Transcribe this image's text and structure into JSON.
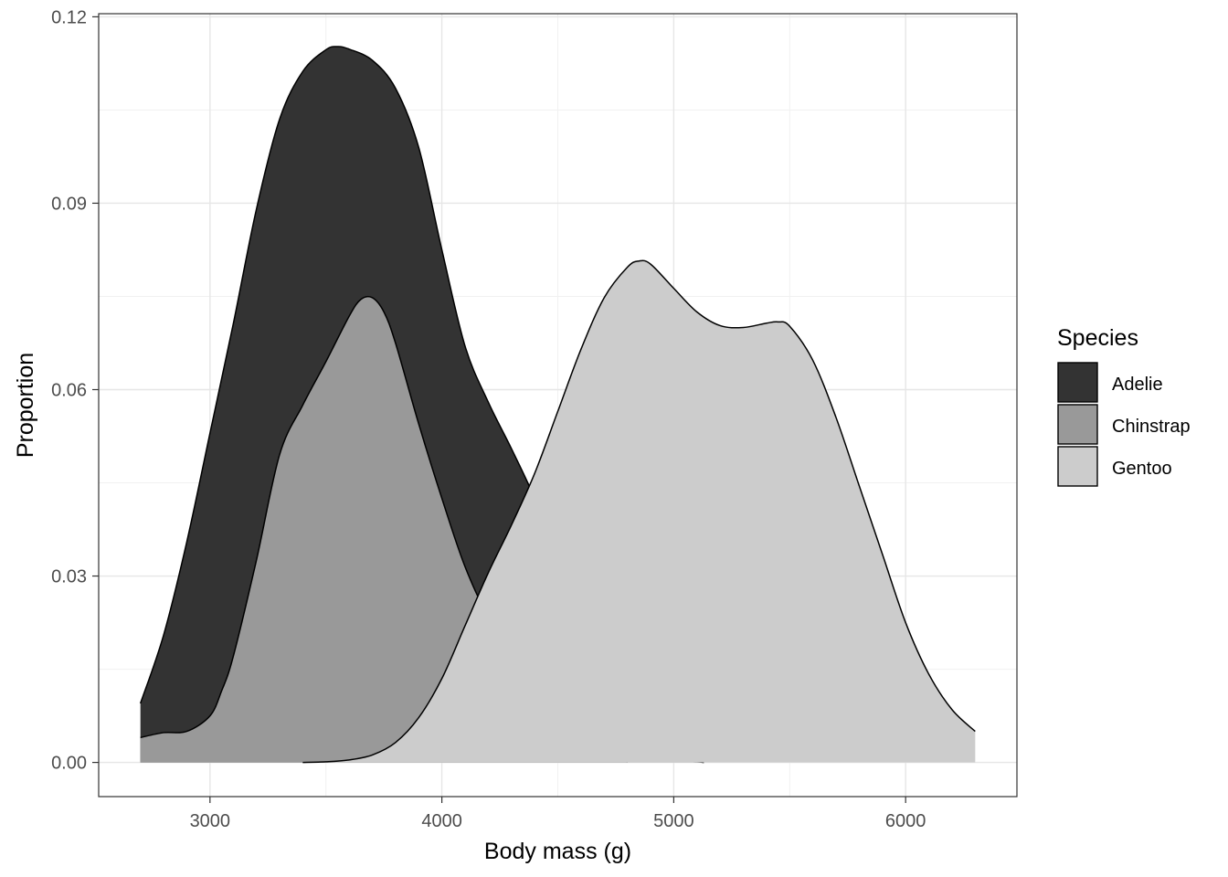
{
  "chart_data": {
    "type": "area",
    "title": "",
    "xlabel": "Body mass (g)",
    "ylabel": "Proportion",
    "xlim": [
      2520,
      6480
    ],
    "ylim": [
      -0.0055,
      0.1205
    ],
    "x_ticks": [
      {
        "value": 3000,
        "label": "3000"
      },
      {
        "value": 4000,
        "label": "4000"
      },
      {
        "value": 5000,
        "label": "5000"
      },
      {
        "value": 6000,
        "label": "6000"
      }
    ],
    "y_ticks": [
      {
        "value": 0.0,
        "label": "0.00"
      },
      {
        "value": 0.03,
        "label": "0.03"
      },
      {
        "value": 0.06,
        "label": "0.06"
      },
      {
        "value": 0.09,
        "label": "0.09"
      },
      {
        "value": 0.12,
        "label": "0.12"
      }
    ],
    "x_minor_ticks": [
      2500,
      3500,
      4500,
      5500,
      6500
    ],
    "y_minor_ticks": [
      0.015,
      0.045,
      0.075,
      0.105
    ],
    "grid": true,
    "legend": {
      "title": "Species",
      "placement": "right"
    },
    "series": [
      {
        "name": "Adelie",
        "color": "#333333",
        "x": [
          2700,
          2800,
          2900,
          3000,
          3100,
          3200,
          3300,
          3400,
          3500,
          3550,
          3600,
          3700,
          3800,
          3900,
          4000,
          4100,
          4200,
          4300,
          4400,
          4500,
          4600,
          4700,
          4800
        ],
        "y": [
          0.0095,
          0.0205,
          0.0355,
          0.053,
          0.0705,
          0.089,
          0.1035,
          0.1112,
          0.1147,
          0.1152,
          0.1148,
          0.113,
          0.1085,
          0.099,
          0.0825,
          0.067,
          0.058,
          0.0505,
          0.0425,
          0.0325,
          0.0215,
          0.012,
          0.0
        ]
      },
      {
        "name": "Chinstrap",
        "color": "#999999",
        "x": [
          2700,
          2800,
          2900,
          3000,
          3050,
          3100,
          3200,
          3300,
          3400,
          3500,
          3600,
          3650,
          3700,
          3750,
          3800,
          3900,
          4000,
          4100,
          4200,
          4300,
          4400,
          4500,
          4600,
          4700,
          4800,
          4900,
          5000,
          5100,
          5130
        ],
        "y": [
          0.004,
          0.0048,
          0.005,
          0.0075,
          0.0115,
          0.017,
          0.0325,
          0.0495,
          0.0575,
          0.0645,
          0.0718,
          0.0745,
          0.0748,
          0.0725,
          0.0675,
          0.0545,
          0.0425,
          0.0315,
          0.0237,
          0.0205,
          0.015,
          0.01,
          0.0068,
          0.004,
          0.002,
          0.0009,
          0.0003,
          0.0001,
          0.0
        ]
      },
      {
        "name": "Gentoo",
        "color": "#cccccc",
        "x": [
          3400,
          3500,
          3600,
          3700,
          3800,
          3900,
          4000,
          4100,
          4200,
          4300,
          4400,
          4500,
          4600,
          4700,
          4800,
          4850,
          4900,
          5000,
          5100,
          5200,
          5300,
          5400,
          5450,
          5500,
          5600,
          5700,
          5800,
          5900,
          6000,
          6100,
          6200,
          6300
        ],
        "y": [
          0.0,
          0.0001,
          0.0004,
          0.0012,
          0.0032,
          0.0072,
          0.0135,
          0.022,
          0.0305,
          0.0382,
          0.0465,
          0.0565,
          0.0665,
          0.0748,
          0.0797,
          0.0807,
          0.0802,
          0.0763,
          0.0725,
          0.0703,
          0.07,
          0.0707,
          0.0709,
          0.0702,
          0.0647,
          0.0555,
          0.0445,
          0.0335,
          0.0225,
          0.0142,
          0.0085,
          0.005
        ]
      }
    ]
  }
}
